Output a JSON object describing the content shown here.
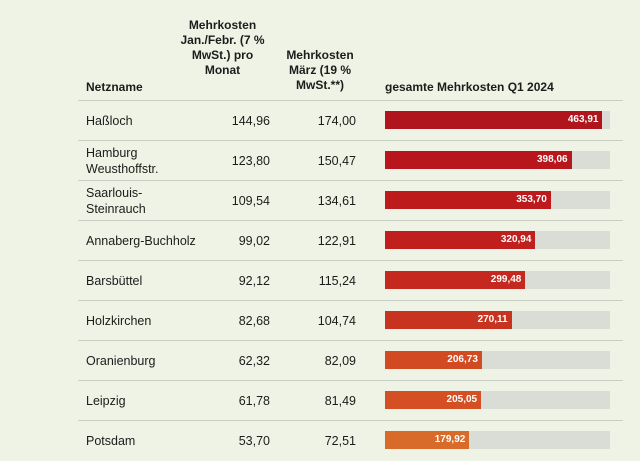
{
  "table": {
    "columns": [
      "Netzname",
      "Mehrkosten Jan./Febr. (7 % MwSt.) pro Monat",
      "Mehrkosten März (19 % MwSt.**)",
      "gesamte Mehrkosten Q1 2024"
    ],
    "xlim": [
      0,
      480
    ],
    "rows": [
      {
        "name": "Haßloch",
        "jan_feb": "144,96",
        "maerz": "174,00",
        "total": 463.91,
        "total_label": "463,91",
        "color": "#b0141c"
      },
      {
        "name": "Hamburg Weusthoffstr.",
        "jan_feb": "123,80",
        "maerz": "150,47",
        "total": 398.06,
        "total_label": "398,06",
        "color": "#b8161c"
      },
      {
        "name": "Saarlouis-Steinrauch",
        "jan_feb": "109,54",
        "maerz": "134,61",
        "total": 353.7,
        "total_label": "353,70",
        "color": "#bd1a1c"
      },
      {
        "name": "Annaberg-Buchholz",
        "jan_feb": "99,02",
        "maerz": "122,91",
        "total": 320.94,
        "total_label": "320,94",
        "color": "#c01f1d"
      },
      {
        "name": "Barsbüttel",
        "jan_feb": "92,12",
        "maerz": "115,24",
        "total": 299.48,
        "total_label": "299,48",
        "color": "#c4281e"
      },
      {
        "name": "Holzkirchen",
        "jan_feb": "82,68",
        "maerz": "104,74",
        "total": 270.11,
        "total_label": "270,11",
        "color": "#c8331f"
      },
      {
        "name": "Oranienburg",
        "jan_feb": "62,32",
        "maerz": "82,09",
        "total": 206.73,
        "total_label": "206,73",
        "color": "#d24a22"
      },
      {
        "name": "Leipzig",
        "jan_feb": "61,78",
        "maerz": "81,49",
        "total": 205.05,
        "total_label": "205,05",
        "color": "#d45024"
      },
      {
        "name": "Potsdam",
        "jan_feb": "53,70",
        "maerz": "72,51",
        "total": 179.92,
        "total_label": "179,92",
        "color": "#d86a2a"
      }
    ]
  }
}
